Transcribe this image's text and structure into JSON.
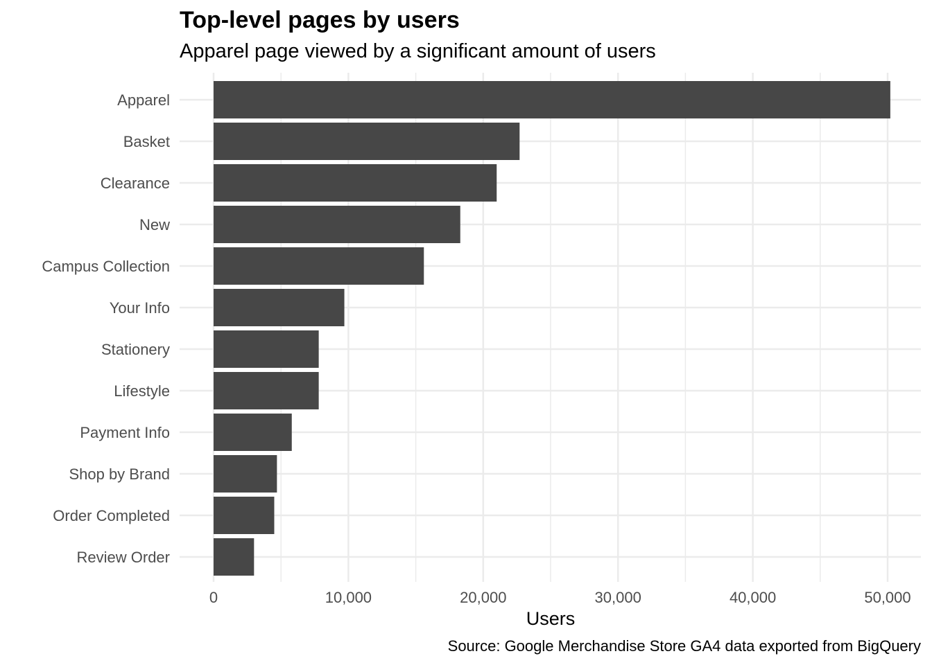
{
  "chart_data": {
    "type": "bar",
    "orientation": "horizontal",
    "title": "Top-level pages by users",
    "subtitle": "Apparel page viewed by a significant amount of users",
    "caption": "Source: Google Merchandise Store GA4 data exported from BigQuery",
    "xlabel": "Users",
    "ylabel": "",
    "categories": [
      "Apparel",
      "Basket",
      "Clearance",
      "New",
      "Campus Collection",
      "Your Info",
      "Stationery",
      "Lifestyle",
      "Payment Info",
      "Shop by Brand",
      "Order Completed",
      "Review Order"
    ],
    "values": [
      50200,
      22700,
      21000,
      18300,
      15600,
      9700,
      7800,
      7800,
      5800,
      4700,
      4500,
      3000
    ],
    "xlim": [
      0,
      51000
    ],
    "x_ticks": [
      0,
      10000,
      20000,
      30000,
      40000,
      50000
    ],
    "x_tick_labels": [
      "0",
      "10,000",
      "20,000",
      "30,000",
      "40,000",
      "50,000"
    ],
    "bar_color": "#474747",
    "grid_color": "#ebebeb",
    "grid": true
  }
}
